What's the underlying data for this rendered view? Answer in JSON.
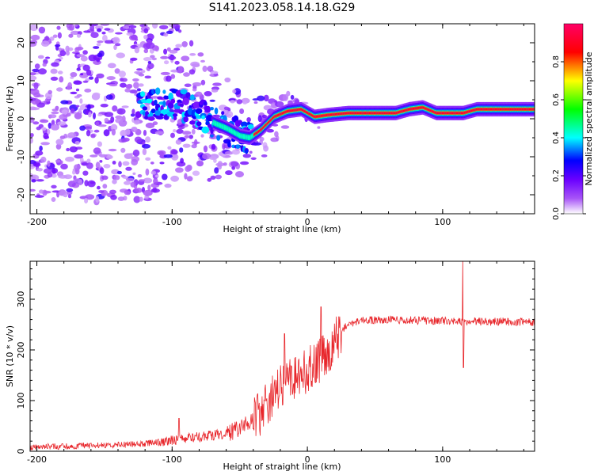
{
  "figure": {
    "title": "S141.2023.058.14.18.G29"
  },
  "chart_data": [
    {
      "type": "heatmap",
      "title": "S141.2023.058.14.18.G29",
      "xlabel": "Height of straight line (km)",
      "ylabel": "Frequency (Hz)",
      "xlim": [
        -205,
        168
      ],
      "ylim": [
        -25,
        25
      ],
      "xticks": [
        -200,
        -100,
        0,
        100
      ],
      "yticks": [
        -20,
        -10,
        0,
        10,
        20
      ],
      "grid": false,
      "colorbar": {
        "label": "Normalized spectral amplitude",
        "range": [
          0,
          1
        ],
        "ticks": [
          0.0,
          0.2,
          0.4,
          0.6,
          0.8
        ],
        "tick_labels": [
          "0.0",
          "0.2",
          "0.4",
          "0.6",
          "0.8"
        ],
        "colormap": [
          "#ffffff",
          "#a855f7",
          "#6a00ff",
          "#0000ff",
          "#00ffff",
          "#00ff00",
          "#ffff00",
          "#ff0000",
          "#ff0066"
        ]
      },
      "ridge": {
        "description_points_km_hz": [
          [
            -120,
            3
          ],
          [
            -110,
            3.5
          ],
          [
            -100,
            4
          ],
          [
            -90,
            3
          ],
          [
            -80,
            1.5
          ],
          [
            -70,
            -1
          ],
          [
            -60,
            -2.5
          ],
          [
            -50,
            -4.5
          ],
          [
            -43,
            -5
          ],
          [
            -35,
            -3
          ],
          [
            -25,
            0.5
          ],
          [
            -15,
            2
          ],
          [
            -5,
            2.5
          ],
          [
            5,
            0.5
          ],
          [
            15,
            1
          ],
          [
            30,
            1.5
          ],
          [
            50,
            1.5
          ],
          [
            65,
            1.5
          ],
          [
            75,
            2.5
          ],
          [
            85,
            3
          ],
          [
            95,
            1.5
          ],
          [
            105,
            1.5
          ],
          [
            115,
            1.5
          ],
          [
            125,
            2.5
          ],
          [
            168,
            2.5
          ]
        ],
        "peak_amplitude_start_km": -40
      }
    },
    {
      "type": "line",
      "xlabel": "Height of straight line (km)",
      "ylabel": "SNR (10 * v/v)",
      "xlim": [
        -205,
        168
      ],
      "ylim": [
        0,
        375
      ],
      "xticks": [
        -200,
        -100,
        0,
        100
      ],
      "yticks": [
        0,
        100,
        200,
        300
      ],
      "grid": false,
      "color": "#e8262b",
      "series": [
        {
          "trend_x": [
            -205,
            -150,
            -120,
            -100,
            -80,
            -60,
            -50,
            -40,
            -30,
            -20,
            -10,
            0,
            10,
            20,
            25,
            30,
            40,
            60,
            100,
            168
          ],
          "trend_y": [
            8,
            12,
            15,
            22,
            28,
            35,
            45,
            60,
            90,
            130,
            145,
            160,
            180,
            215,
            235,
            252,
            258,
            260,
            257,
            255
          ],
          "spikes": [
            {
              "x": 115,
              "y_max": 378,
              "y_min": 165
            },
            {
              "x": 10,
              "y_max": 285
            },
            {
              "x": -17,
              "y_max": 232
            },
            {
              "x": -95,
              "y_max": 65
            }
          ]
        }
      ]
    }
  ]
}
